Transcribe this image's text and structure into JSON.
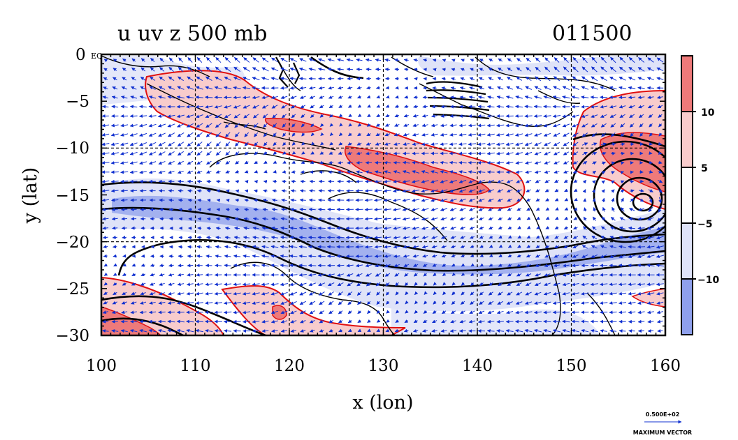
{
  "title": {
    "left": "u uv z 500 mb",
    "right": "011500"
  },
  "chart_data": {
    "type": "heatmap",
    "description_variables": [
      "u",
      "uv",
      "z"
    ],
    "level": "500 mb",
    "time": "011500",
    "xlabel": "x (lon)",
    "ylabel": "y (lat)",
    "xlim": [
      100,
      160
    ],
    "ylim": [
      -30,
      0
    ],
    "x_ticks": [
      100,
      110,
      120,
      130,
      140,
      150,
      160
    ],
    "y_ticks": [
      0,
      -5,
      -10,
      -15,
      -20,
      -25,
      -30
    ],
    "y_tick_labels": [
      "0 EQ",
      "−5",
      "−10",
      "−15",
      "−20",
      "−25",
      "−30"
    ],
    "grid": true,
    "colorbar": {
      "levels": [
        -15,
        -10,
        -5,
        5,
        10,
        15
      ],
      "tick_labels": [
        "−10",
        "−5",
        "5",
        "10"
      ],
      "colors": [
        "#8fa0ec",
        "#dfe3f8",
        "#ffffff",
        "#f8cccc",
        "#ee7a7a"
      ]
    },
    "vector_reference": {
      "value_label": "0.500E+02",
      "label": "MAXIMUM VECTOR"
    },
    "colors": {
      "positive_contour": "#e01010",
      "negative_fill_strong": "#8fa0ec",
      "negative_fill_weak": "#dfe3f8",
      "positive_fill_weak": "#f8cccc",
      "positive_fill_strong": "#ee7a7a",
      "vectors": "#1030d0",
      "z_contours": "#000000"
    }
  }
}
